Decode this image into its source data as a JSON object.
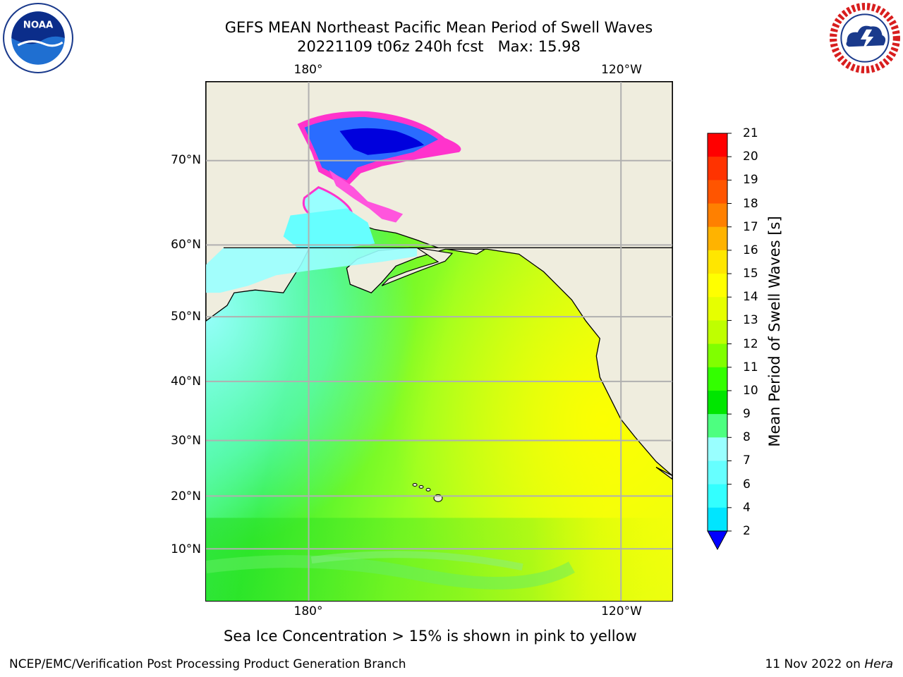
{
  "title": {
    "line1": "GEFS MEAN Northeast Pacific Mean Period of Swell Waves",
    "line2": "20221109 t06z 240h fcst   Max: 15.98"
  },
  "map": {
    "lon_labels_top": [
      "180°",
      "120°W"
    ],
    "lon_labels_bottom": [
      "180°",
      "120°W"
    ],
    "lat_labels": [
      "70°N",
      "60°N",
      "50°N",
      "40°N",
      "30°N",
      "20°N",
      "10°N"
    ],
    "colors": {
      "land": "#efedde",
      "coastline": "#000000",
      "grid": "#b0b0b0",
      "sea_ice": "#ff33cc"
    }
  },
  "colorbar": {
    "title": "Mean Period of Swell Waves [s]",
    "tick_labels": [
      "2",
      "4",
      "6",
      "7",
      "8",
      "9",
      "10",
      "11",
      "12",
      "13",
      "14",
      "15",
      "16",
      "17",
      "18",
      "19",
      "20",
      "21"
    ],
    "colors": [
      "#0000ff",
      "#0066ff",
      "#00e5ff",
      "#33ffff",
      "#66ffff",
      "#99ffff",
      "#4dff80",
      "#00e600",
      "#33ff00",
      "#80ff00",
      "#bfff00",
      "#e6ff00",
      "#ffff00",
      "#ffe600",
      "#ffb300",
      "#ff8000",
      "#ff5500",
      "#ff3300",
      "#ff0000"
    ],
    "extend": "min"
  },
  "note": "Sea Ice Concentration > 15% is shown in pink to yellow",
  "footer": {
    "credit": "NCEP/EMC/Verification Post Processing Product Generation Branch",
    "date": "11 Nov 2022 on",
    "host": "Hera"
  }
}
